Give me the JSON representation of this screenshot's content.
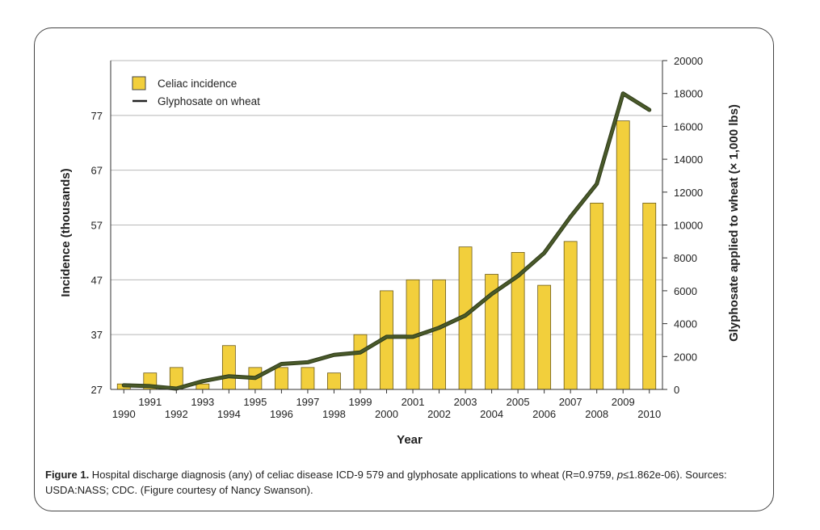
{
  "chart_data": {
    "type": "bar+line",
    "categories": [
      "1990",
      "1991",
      "1992",
      "1993",
      "1994",
      "1995",
      "1996",
      "1997",
      "1998",
      "1999",
      "2000",
      "2001",
      "2002",
      "2003",
      "2004",
      "2005",
      "2006",
      "2007",
      "2008",
      "2009",
      "2010"
    ],
    "series": [
      {
        "name": "Celiac incidence",
        "kind": "bar",
        "axis": "left",
        "color": "#f2cf3c",
        "values": [
          28,
          30,
          31,
          28,
          35,
          31,
          31,
          31,
          30,
          37,
          45,
          47,
          47,
          53,
          48,
          52,
          46,
          54,
          61,
          76,
          61
        ]
      },
      {
        "name": "Glyphosate on wheat",
        "kind": "line",
        "axis": "right",
        "color": "#4a5a2a",
        "values": [
          250,
          200,
          50,
          500,
          800,
          700,
          1550,
          1650,
          2100,
          2250,
          3200,
          3200,
          3750,
          4500,
          5800,
          6900,
          8300,
          10500,
          12500,
          18000,
          17000
        ]
      }
    ],
    "xlabel": "Year",
    "ylabel": "Incidence (thousands)",
    "y2label": "Glyphosate applied to wheat (× 1,000 lbs)",
    "ylim": [
      27,
      87
    ],
    "y2lim": [
      0,
      20000
    ],
    "yticks": [
      "27",
      "37",
      "47",
      "57",
      "67",
      "77"
    ],
    "y2ticks": [
      "0",
      "2000",
      "4000",
      "6000",
      "8000",
      "10000",
      "12000",
      "14000",
      "16000",
      "18000",
      "20000"
    ],
    "grid": true,
    "legend_position": "top-left"
  },
  "caption": {
    "label": "Figure 1.",
    "text_before_p": " Hospital discharge diagnosis (any) of celiac disease ICD-9 579 and glyphosate applications to wheat (R=0.9759, ",
    "p_symbol": "p",
    "text_after_p": "≤1.862e-06). Sources: USDA:NASS; CDC. (Figure courtesy of Nancy Swanson)."
  }
}
